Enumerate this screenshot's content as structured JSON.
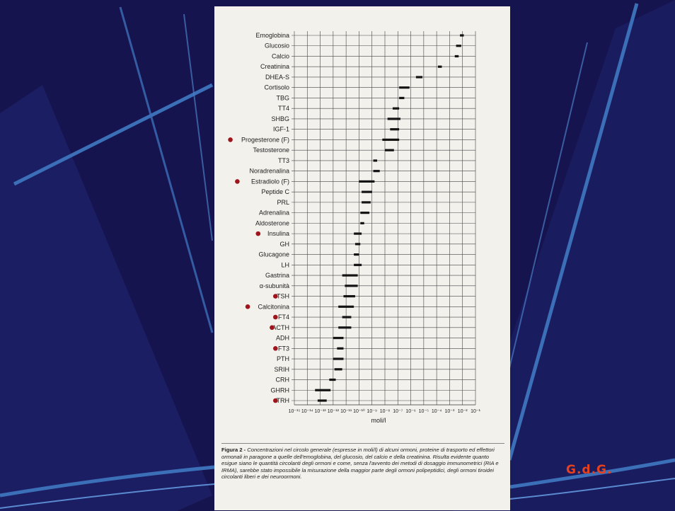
{
  "theme": {
    "background": "#16144f",
    "stripe": "#3b6fb8",
    "bullet": "#a0151c",
    "logo_color": "#e8401c"
  },
  "chart_data": {
    "type": "range",
    "title": "",
    "xlabel": "moli/l",
    "x_scale": "log",
    "xlim_exponent": [
      -15,
      -1
    ],
    "x_tick_labels": [
      "10⁻¹⁵",
      "10⁻¹⁴",
      "10⁻¹³",
      "10⁻¹²",
      "10⁻¹¹",
      "10⁻¹⁰",
      "10⁻⁹",
      "10⁻⁸",
      "10⁻⁷",
      "10⁻⁶",
      "10⁻⁵",
      "10⁻⁴",
      "10⁻³",
      "10⁻²",
      "10⁻¹"
    ],
    "grid": true,
    "rows": [
      {
        "label": "Emoglobina",
        "range": [
          -2.2,
          -1.9
        ]
      },
      {
        "label": "Glucosio",
        "range": [
          -2.5,
          -2.1
        ]
      },
      {
        "label": "Calcio",
        "range": [
          -2.6,
          -2.3
        ]
      },
      {
        "label": "Creatinina",
        "range": [
          -3.9,
          -3.6
        ]
      },
      {
        "label": "DHEA-S",
        "range": [
          -5.6,
          -5.1
        ]
      },
      {
        "label": "Cortisolo",
        "range": [
          -6.9,
          -6.1
        ]
      },
      {
        "label": "TBG",
        "range": [
          -6.9,
          -6.5
        ]
      },
      {
        "label": "TT4",
        "range": [
          -7.4,
          -6.9
        ]
      },
      {
        "label": "SHBG",
        "range": [
          -7.8,
          -6.8
        ]
      },
      {
        "label": "IGF-1",
        "range": [
          -7.6,
          -6.9
        ]
      },
      {
        "label": "Progesterone (F)",
        "range": [
          -8.2,
          -6.9
        ],
        "marked": true
      },
      {
        "label": "Testosterone",
        "range": [
          -8.0,
          -7.3
        ]
      },
      {
        "label": "TT3",
        "range": [
          -8.9,
          -8.6
        ]
      },
      {
        "label": "Noradrenalina",
        "range": [
          -8.9,
          -8.4
        ]
      },
      {
        "label": "Estradiolo (F)",
        "range": [
          -10.0,
          -8.8
        ],
        "marked": true
      },
      {
        "label": "Peptide C",
        "range": [
          -9.8,
          -9.0
        ]
      },
      {
        "label": "PRL",
        "range": [
          -9.8,
          -9.1
        ]
      },
      {
        "label": "Adrenalina",
        "range": [
          -9.9,
          -9.2
        ]
      },
      {
        "label": "Aldosterone",
        "range": [
          -9.9,
          -9.6
        ]
      },
      {
        "label": "Insulina",
        "range": [
          -10.4,
          -9.8
        ],
        "marked": true
      },
      {
        "label": "GH",
        "range": [
          -10.3,
          -9.9
        ]
      },
      {
        "label": "Glucagone",
        "range": [
          -10.4,
          -10.0
        ]
      },
      {
        "label": "LH",
        "range": [
          -10.4,
          -9.8
        ]
      },
      {
        "label": "Gastrina",
        "range": [
          -11.3,
          -10.1
        ]
      },
      {
        "label": "α-subunità",
        "range": [
          -11.1,
          -10.1
        ]
      },
      {
        "label": "TSH",
        "range": [
          -11.2,
          -10.3
        ],
        "marked": true
      },
      {
        "label": "Calcitonina",
        "range": [
          -11.6,
          -10.4
        ],
        "marked": true
      },
      {
        "label": "FT4",
        "range": [
          -11.3,
          -10.6
        ],
        "marked": true
      },
      {
        "label": "ACTH",
        "range": [
          -11.6,
          -10.6
        ],
        "marked": true
      },
      {
        "label": "ADH",
        "range": [
          -12.0,
          -11.2
        ]
      },
      {
        "label": "FT3",
        "range": [
          -11.7,
          -11.2
        ],
        "marked": true
      },
      {
        "label": "PTH",
        "range": [
          -12.0,
          -11.2
        ]
      },
      {
        "label": "SRIH",
        "range": [
          -11.9,
          -11.3
        ]
      },
      {
        "label": "CRH",
        "range": [
          -12.3,
          -11.8
        ]
      },
      {
        "label": "GHRH",
        "range": [
          -13.4,
          -12.2
        ]
      },
      {
        "label": "TRH",
        "range": [
          -13.2,
          -12.5
        ],
        "marked": true
      }
    ]
  },
  "caption": {
    "fig_label": "Figura 2 -",
    "text": " Concentrazioni nel circolo generale (espresse in moli/l) di alcuni ormoni, proteine di trasporto ed effettori ormonali in paragone a quelle dell'emoglobina, del glucosio, del calcio e della creatinina. Risulta evidente quanto esigue siano le quantità circolanti degli ormoni e come, senza l'avvento dei metodi di dosaggio immunometrici (RIA e IRMA), sarebbe stato impossibile la misurazione della maggior parte degli ormoni polipeptidici, degli ormoni tiroidei circolanti liberi e dei neuroormoni."
  },
  "logo": "G.d.G."
}
